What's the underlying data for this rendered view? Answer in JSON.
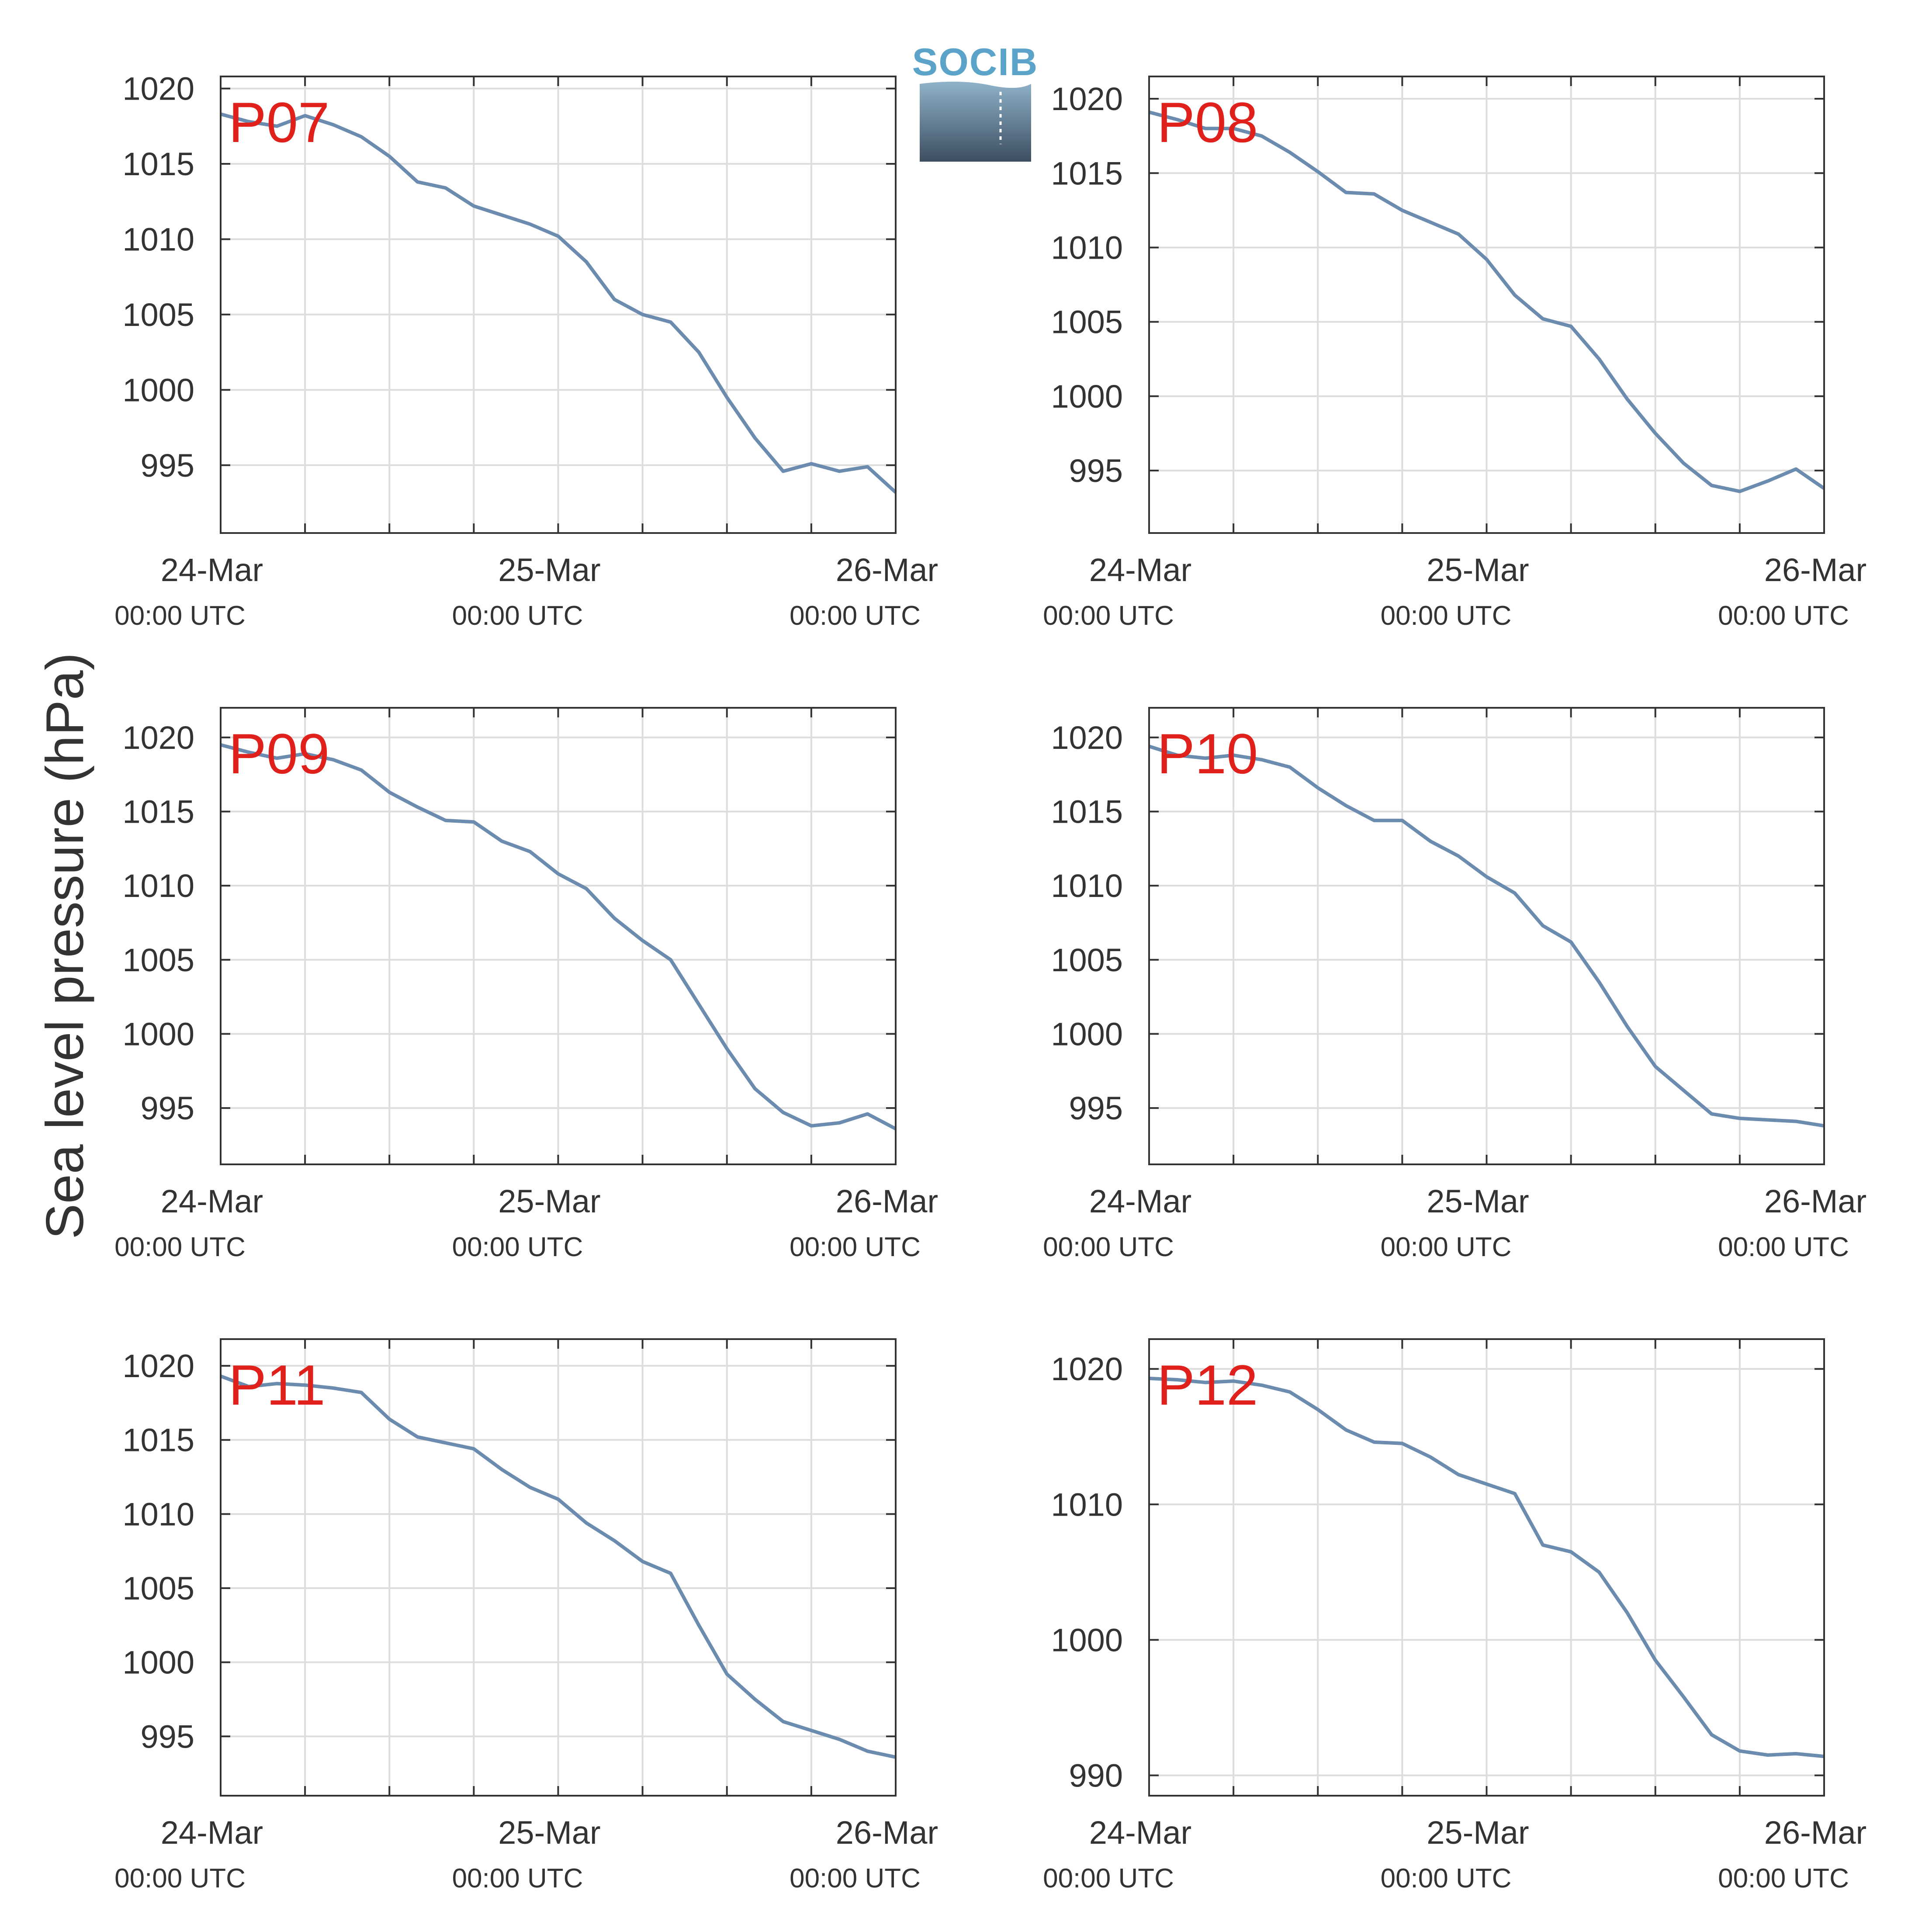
{
  "figure": {
    "ylabel": "Sea level pressure (hPa)",
    "logo_text": "SOCIB"
  },
  "colors": {
    "line": "#6b8cae",
    "grid": "#dddddd",
    "axes": "#333333",
    "panel_label": "#e0201b",
    "logo": "#5ba3c9"
  },
  "chart_data": [
    {
      "type": "line",
      "panel": "P07",
      "xlim": [
        "24-Mar 00:00 UTC",
        "26-Mar 00:00 UTC"
      ],
      "ylim": [
        990.5,
        1020.8
      ],
      "yticks": [
        995,
        1000,
        1005,
        1010,
        1015,
        1020
      ],
      "xticks": [
        {
          "date": "24-Mar",
          "time": "00:00 UTC"
        },
        {
          "date": "25-Mar",
          "time": "00:00 UTC"
        },
        {
          "date": "26-Mar",
          "time": "00:00 UTC"
        }
      ],
      "hours": [
        0,
        2,
        4,
        6,
        8,
        10,
        12,
        14,
        16,
        18,
        20,
        22,
        24,
        26,
        28,
        30,
        32,
        34,
        36,
        38,
        40,
        42,
        44,
        46,
        48
      ],
      "values": [
        1018.3,
        1017.8,
        1017.5,
        1018.2,
        1017.6,
        1016.8,
        1015.5,
        1013.8,
        1013.4,
        1012.2,
        1011.6,
        1011.0,
        1010.2,
        1008.5,
        1006.0,
        1005.0,
        1004.5,
        1002.5,
        999.5,
        996.8,
        994.6,
        995.1,
        994.6,
        994.9,
        993.2
      ]
    },
    {
      "type": "line",
      "panel": "P08",
      "xlim": [
        "24-Mar 00:00 UTC",
        "26-Mar 00:00 UTC"
      ],
      "ylim": [
        990.8,
        1021.5
      ],
      "yticks": [
        995,
        1000,
        1005,
        1010,
        1015,
        1020
      ],
      "xticks": [
        {
          "date": "24-Mar",
          "time": "00:00 UTC"
        },
        {
          "date": "25-Mar",
          "time": "00:00 UTC"
        },
        {
          "date": "26-Mar",
          "time": "00:00 UTC"
        }
      ],
      "hours": [
        0,
        2,
        4,
        6,
        8,
        10,
        12,
        14,
        16,
        18,
        20,
        22,
        24,
        26,
        28,
        30,
        32,
        34,
        36,
        38,
        40,
        42,
        44,
        46,
        48
      ],
      "values": [
        1019.1,
        1018.6,
        1018.0,
        1018.0,
        1017.5,
        1016.4,
        1015.1,
        1013.7,
        1013.6,
        1012.5,
        1011.7,
        1010.9,
        1009.2,
        1006.8,
        1005.2,
        1004.7,
        1002.5,
        999.8,
        997.5,
        995.5,
        994.0,
        993.6,
        994.3,
        995.1,
        993.8
      ]
    },
    {
      "type": "line",
      "panel": "P09",
      "xlim": [
        "24-Mar 00:00 UTC",
        "26-Mar 00:00 UTC"
      ],
      "ylim": [
        991.2,
        1022.0
      ],
      "yticks": [
        995,
        1000,
        1005,
        1010,
        1015,
        1020
      ],
      "xticks": [
        {
          "date": "24-Mar",
          "time": "00:00 UTC"
        },
        {
          "date": "25-Mar",
          "time": "00:00 UTC"
        },
        {
          "date": "26-Mar",
          "time": "00:00 UTC"
        }
      ],
      "hours": [
        0,
        2,
        4,
        6,
        8,
        10,
        12,
        14,
        16,
        18,
        20,
        22,
        24,
        26,
        28,
        30,
        32,
        34,
        36,
        38,
        40,
        42,
        44,
        46,
        48
      ],
      "values": [
        1019.5,
        1019.0,
        1018.6,
        1018.9,
        1018.5,
        1017.8,
        1016.3,
        1015.3,
        1014.4,
        1014.3,
        1013.0,
        1012.3,
        1010.8,
        1009.8,
        1007.8,
        1006.3,
        1005.0,
        1002.0,
        999.0,
        996.3,
        994.7,
        993.8,
        994.0,
        994.6,
        993.6
      ]
    },
    {
      "type": "line",
      "panel": "P10",
      "xlim": [
        "24-Mar 00:00 UTC",
        "26-Mar 00:00 UTC"
      ],
      "ylim": [
        991.2,
        1022.0
      ],
      "yticks": [
        995,
        1000,
        1005,
        1010,
        1015,
        1020
      ],
      "xticks": [
        {
          "date": "24-Mar",
          "time": "00:00 UTC"
        },
        {
          "date": "25-Mar",
          "time": "00:00 UTC"
        },
        {
          "date": "26-Mar",
          "time": "00:00 UTC"
        }
      ],
      "hours": [
        0,
        2,
        4,
        6,
        8,
        10,
        12,
        14,
        16,
        18,
        20,
        22,
        24,
        26,
        28,
        30,
        32,
        34,
        36,
        38,
        40,
        42,
        44,
        46,
        48
      ],
      "values": [
        1019.4,
        1018.8,
        1018.6,
        1018.8,
        1018.5,
        1018.0,
        1016.6,
        1015.4,
        1014.4,
        1014.4,
        1013.0,
        1012.0,
        1010.6,
        1009.5,
        1007.3,
        1006.2,
        1003.5,
        1000.5,
        997.8,
        996.2,
        994.6,
        994.3,
        994.2,
        994.1,
        993.8
      ]
    },
    {
      "type": "line",
      "panel": "P11",
      "xlim": [
        "24-Mar 00:00 UTC",
        "26-Mar 00:00 UTC"
      ],
      "ylim": [
        991.0,
        1021.8
      ],
      "yticks": [
        995,
        1000,
        1005,
        1010,
        1015,
        1020
      ],
      "xticks": [
        {
          "date": "24-Mar",
          "time": "00:00 UTC"
        },
        {
          "date": "25-Mar",
          "time": "00:00 UTC"
        },
        {
          "date": "26-Mar",
          "time": "00:00 UTC"
        }
      ],
      "hours": [
        0,
        2,
        4,
        6,
        8,
        10,
        12,
        14,
        16,
        18,
        20,
        22,
        24,
        26,
        28,
        30,
        32,
        34,
        36,
        38,
        40,
        42,
        44,
        46,
        48
      ],
      "values": [
        1019.3,
        1018.6,
        1018.8,
        1018.7,
        1018.5,
        1018.2,
        1016.4,
        1015.2,
        1014.8,
        1014.4,
        1013.0,
        1011.8,
        1011.0,
        1009.4,
        1008.2,
        1006.8,
        1006.0,
        1002.5,
        999.2,
        997.5,
        996.0,
        995.4,
        994.8,
        994.0,
        993.6
      ]
    },
    {
      "type": "line",
      "panel": "P12",
      "xlim": [
        "24-Mar 00:00 UTC",
        "26-Mar 00:00 UTC"
      ],
      "ylim": [
        988.5,
        1022.2
      ],
      "yticks": [
        990,
        1000,
        1010,
        1020
      ],
      "xticks": [
        {
          "date": "24-Mar",
          "time": "00:00 UTC"
        },
        {
          "date": "25-Mar",
          "time": "00:00 UTC"
        },
        {
          "date": "26-Mar",
          "time": "00:00 UTC"
        }
      ],
      "hours": [
        0,
        2,
        4,
        6,
        8,
        10,
        12,
        14,
        16,
        18,
        20,
        22,
        24,
        26,
        28,
        30,
        32,
        34,
        36,
        38,
        40,
        42,
        44,
        46,
        48
      ],
      "values": [
        1019.3,
        1019.2,
        1019.0,
        1019.1,
        1018.8,
        1018.3,
        1017.0,
        1015.5,
        1014.6,
        1014.5,
        1013.5,
        1012.2,
        1011.5,
        1010.8,
        1007.0,
        1006.5,
        1005.0,
        1002.0,
        998.5,
        995.8,
        993.0,
        991.8,
        991.5,
        991.6,
        991.4
      ]
    }
  ]
}
